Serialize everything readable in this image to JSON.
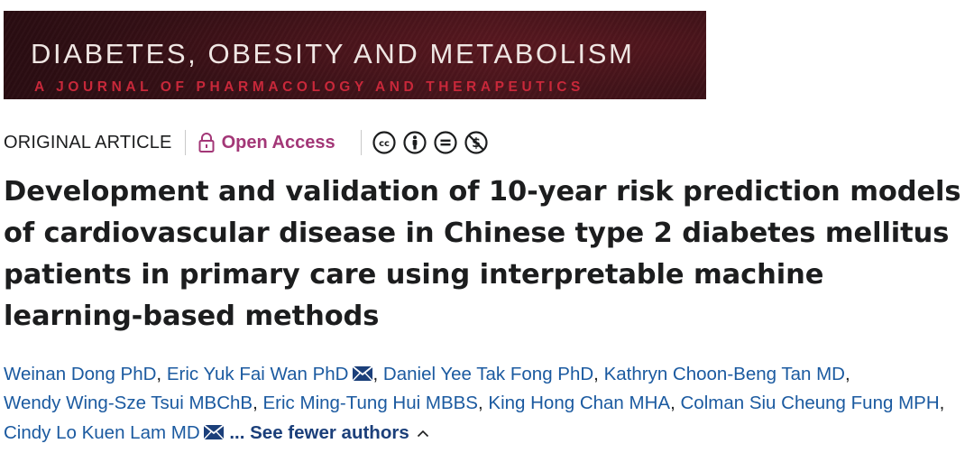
{
  "journal": {
    "title": "DIABETES, OBESITY AND METABOLISM",
    "subtitle": "A JOURNAL OF PHARMACOLOGY AND THERAPEUTICS"
  },
  "meta": {
    "article_type": "ORIGINAL ARTICLE",
    "access_label": "Open Access",
    "license_icons": [
      "cc-icon",
      "by-icon",
      "nd-icon",
      "nc-icon"
    ]
  },
  "article": {
    "title": "Development and validation of 10-year risk prediction models of cardiovascular disease in Chinese type 2 diabetes mellitus patients in primary care using interpretable machine learning-based methods"
  },
  "authors": [
    {
      "name": "Weinan Dong PhD",
      "corresponding": false
    },
    {
      "name": "Eric Yuk Fai Wan PhD",
      "corresponding": true
    },
    {
      "name": "Daniel Yee Tak Fong PhD",
      "corresponding": false
    },
    {
      "name": "Kathryn Choon-Beng Tan MD",
      "corresponding": false
    },
    {
      "name": "Wendy Wing-Sze Tsui MBChB",
      "corresponding": false
    },
    {
      "name": "Eric Ming-Tung Hui MBBS",
      "corresponding": false
    },
    {
      "name": "King Hong Chan MHA",
      "corresponding": false
    },
    {
      "name": "Colman Siu Cheung Fung MPH",
      "corresponding": false
    },
    {
      "name": "Cindy Lo Kuen Lam MD",
      "corresponding": true
    }
  ],
  "see_fewer_label": "... See fewer authors",
  "colors": {
    "banner_text": "#efe6e3",
    "banner_subtitle": "#c8283a",
    "open_access": "#a33777",
    "author_link": "#1b5aa0"
  }
}
